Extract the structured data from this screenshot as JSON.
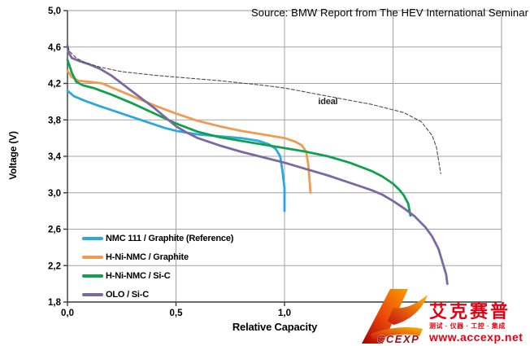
{
  "chart_data": {
    "type": "line",
    "title": "Source: BMW Report from The HEV International Seminar",
    "xlabel": "Relative Capacity",
    "ylabel": "Voltage (V)",
    "xlim": [
      0.0,
      2.0
    ],
    "ylim": [
      1.8,
      5.0
    ],
    "grid": true,
    "legend_position": "lower-left",
    "xticks": {
      "values": [
        0.0,
        0.5,
        1.0
      ],
      "labels": [
        "0,0",
        "0,5",
        "1,0"
      ]
    },
    "x_gridlines": [
      0.5,
      1.0,
      1.5
    ],
    "yticks": {
      "values": [
        5.0,
        4.6,
        4.2,
        3.8,
        3.4,
        3.0,
        2.6,
        2.2,
        1.8
      ],
      "labels": [
        "5,0",
        "4,6",
        "4,2",
        "3,8",
        "3,4",
        "3,0",
        "2,6",
        "2,2",
        "1,8"
      ]
    },
    "annotations": [
      {
        "text": "ideal",
        "x": 1.2,
        "y": 4.0
      }
    ],
    "series": [
      {
        "name": "NMC 111 / Graphite (Reference)",
        "color": "#29a9e0",
        "style": "solid",
        "points": [
          [
            0,
            4.12
          ],
          [
            0.03,
            4.06
          ],
          [
            0.08,
            4.01
          ],
          [
            0.15,
            3.95
          ],
          [
            0.25,
            3.87
          ],
          [
            0.35,
            3.79
          ],
          [
            0.45,
            3.71
          ],
          [
            0.5,
            3.68
          ],
          [
            0.6,
            3.64
          ],
          [
            0.7,
            3.62
          ],
          [
            0.8,
            3.6
          ],
          [
            0.88,
            3.57
          ],
          [
            0.93,
            3.53
          ],
          [
            0.96,
            3.48
          ],
          [
            0.98,
            3.4
          ],
          [
            0.99,
            3.25
          ],
          [
            1.0,
            3.05
          ],
          [
            1.0,
            2.8
          ]
        ]
      },
      {
        "name": "H-Ni-NMC / Graphite",
        "color": "#ef9b52",
        "style": "solid",
        "points": [
          [
            0,
            4.34
          ],
          [
            0.02,
            4.27
          ],
          [
            0.05,
            4.23
          ],
          [
            0.09,
            4.22
          ],
          [
            0.13,
            4.21
          ],
          [
            0.16,
            4.2
          ],
          [
            0.2,
            4.16
          ],
          [
            0.3,
            4.06
          ],
          [
            0.4,
            3.96
          ],
          [
            0.5,
            3.87
          ],
          [
            0.6,
            3.79
          ],
          [
            0.7,
            3.73
          ],
          [
            0.8,
            3.68
          ],
          [
            0.9,
            3.64
          ],
          [
            1.0,
            3.6
          ],
          [
            1.05,
            3.56
          ],
          [
            1.08,
            3.52
          ],
          [
            1.1,
            3.45
          ],
          [
            1.11,
            3.3
          ],
          [
            1.115,
            3.15
          ],
          [
            1.12,
            3.0
          ]
        ]
      },
      {
        "name": "H-Ni-NMC / Si-C",
        "color": "#11a14c",
        "style": "solid",
        "points": [
          [
            0,
            4.46
          ],
          [
            0.02,
            4.32
          ],
          [
            0.04,
            4.22
          ],
          [
            0.07,
            4.18
          ],
          [
            0.12,
            4.15
          ],
          [
            0.2,
            4.08
          ],
          [
            0.3,
            3.98
          ],
          [
            0.4,
            3.87
          ],
          [
            0.5,
            3.76
          ],
          [
            0.6,
            3.67
          ],
          [
            0.7,
            3.61
          ],
          [
            0.8,
            3.57
          ],
          [
            0.9,
            3.53
          ],
          [
            1.0,
            3.49
          ],
          [
            1.1,
            3.45
          ],
          [
            1.2,
            3.4
          ],
          [
            1.3,
            3.33
          ],
          [
            1.4,
            3.24
          ],
          [
            1.45,
            3.18
          ],
          [
            1.5,
            3.1
          ],
          [
            1.53,
            3.03
          ],
          [
            1.55,
            2.97
          ],
          [
            1.57,
            2.88
          ],
          [
            1.58,
            2.75
          ]
        ]
      },
      {
        "name": "OLO / Si-C",
        "color": "#7c68a4",
        "style": "solid",
        "points": [
          [
            0,
            4.62
          ],
          [
            0.005,
            4.54
          ],
          [
            0.02,
            4.48
          ],
          [
            0.05,
            4.45
          ],
          [
            0.1,
            4.41
          ],
          [
            0.15,
            4.36
          ],
          [
            0.2,
            4.29
          ],
          [
            0.25,
            4.2
          ],
          [
            0.3,
            4.11
          ],
          [
            0.35,
            4.02
          ],
          [
            0.4,
            3.93
          ],
          [
            0.45,
            3.83
          ],
          [
            0.5,
            3.73
          ],
          [
            0.55,
            3.66
          ],
          [
            0.6,
            3.6
          ],
          [
            0.7,
            3.52
          ],
          [
            0.8,
            3.45
          ],
          [
            0.9,
            3.39
          ],
          [
            1.0,
            3.33
          ],
          [
            1.1,
            3.26
          ],
          [
            1.2,
            3.19
          ],
          [
            1.3,
            3.11
          ],
          [
            1.4,
            3.03
          ],
          [
            1.45,
            2.98
          ],
          [
            1.5,
            2.91
          ],
          [
            1.55,
            2.83
          ],
          [
            1.6,
            2.74
          ],
          [
            1.65,
            2.62
          ],
          [
            1.68,
            2.52
          ],
          [
            1.71,
            2.38
          ],
          [
            1.73,
            2.22
          ],
          [
            1.745,
            2.1
          ],
          [
            1.75,
            2.0
          ]
        ]
      },
      {
        "name": "ideal",
        "color": "#4d4d4d",
        "style": "dashed",
        "in_legend": false,
        "points": [
          [
            0,
            4.6
          ],
          [
            0.01,
            4.55
          ],
          [
            0.04,
            4.48
          ],
          [
            0.08,
            4.43
          ],
          [
            0.15,
            4.38
          ],
          [
            0.25,
            4.33
          ],
          [
            0.4,
            4.29
          ],
          [
            0.5,
            4.27
          ],
          [
            0.7,
            4.23
          ],
          [
            0.9,
            4.18
          ],
          [
            1.0,
            4.15
          ],
          [
            1.2,
            4.06
          ],
          [
            1.4,
            3.97
          ],
          [
            1.55,
            3.88
          ],
          [
            1.63,
            3.78
          ],
          [
            1.68,
            3.63
          ],
          [
            1.7,
            3.5
          ],
          [
            1.72,
            3.21
          ]
        ]
      }
    ],
    "colors": {
      "gridline": "#a3a3a3",
      "plot_border": "#999999",
      "axis_line": "#3a3a3a",
      "tick_text": "#000000"
    }
  },
  "watermark": {
    "logo_text": "CCEXP",
    "brand_cn": "艾克赛普",
    "tagline": "测试 · 仪器 · 工控 · 集成",
    "url": "www.accexp.net",
    "color": "#e60012"
  }
}
